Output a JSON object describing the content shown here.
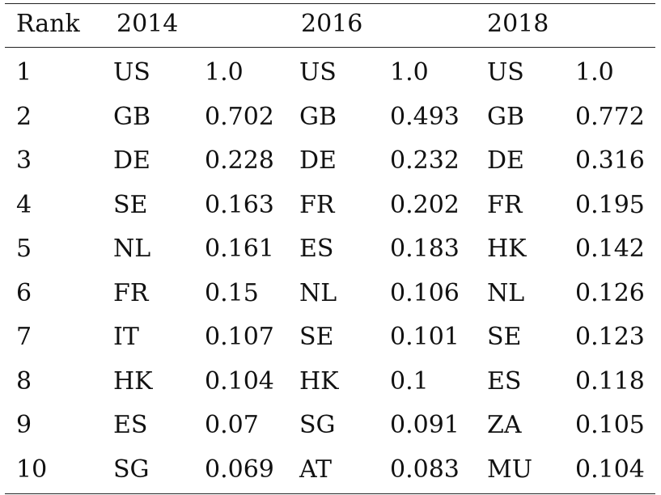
{
  "table": {
    "headers": {
      "rank": "Rank",
      "year1": "2014",
      "year2": "2016",
      "year3": "2018"
    },
    "rows": [
      {
        "rank": "1",
        "c2014": "US",
        "v2014": "1.0",
        "c2016": "US",
        "v2016": "1.0",
        "c2018": "US",
        "v2018": "1.0"
      },
      {
        "rank": "2",
        "c2014": "GB",
        "v2014": "0.702",
        "c2016": "GB",
        "v2016": "0.493",
        "c2018": "GB",
        "v2018": "0.772"
      },
      {
        "rank": "3",
        "c2014": "DE",
        "v2014": "0.228",
        "c2016": "DE",
        "v2016": "0.232",
        "c2018": "DE",
        "v2018": "0.316"
      },
      {
        "rank": "4",
        "c2014": "SE",
        "v2014": "0.163",
        "c2016": "FR",
        "v2016": "0.202",
        "c2018": "FR",
        "v2018": "0.195"
      },
      {
        "rank": "5",
        "c2014": "NL",
        "v2014": "0.161",
        "c2016": "ES",
        "v2016": "0.183",
        "c2018": "HK",
        "v2018": "0.142"
      },
      {
        "rank": "6",
        "c2014": "FR",
        "v2014": "0.15",
        "c2016": "NL",
        "v2016": "0.106",
        "c2018": "NL",
        "v2018": "0.126"
      },
      {
        "rank": "7",
        "c2014": "IT",
        "v2014": "0.107",
        "c2016": "SE",
        "v2016": "0.101",
        "c2018": "SE",
        "v2018": "0.123"
      },
      {
        "rank": "8",
        "c2014": "HK",
        "v2014": "0.104",
        "c2016": "HK",
        "v2016": "0.1",
        "c2018": "ES",
        "v2018": "0.118"
      },
      {
        "rank": "9",
        "c2014": "ES",
        "v2014": "0.07",
        "c2016": "SG",
        "v2016": "0.091",
        "c2018": "ZA",
        "v2018": "0.105"
      },
      {
        "rank": "10",
        "c2014": "SG",
        "v2014": "0.069",
        "c2016": "AT",
        "v2016": "0.083",
        "c2018": "MU",
        "v2018": "0.104"
      }
    ]
  }
}
